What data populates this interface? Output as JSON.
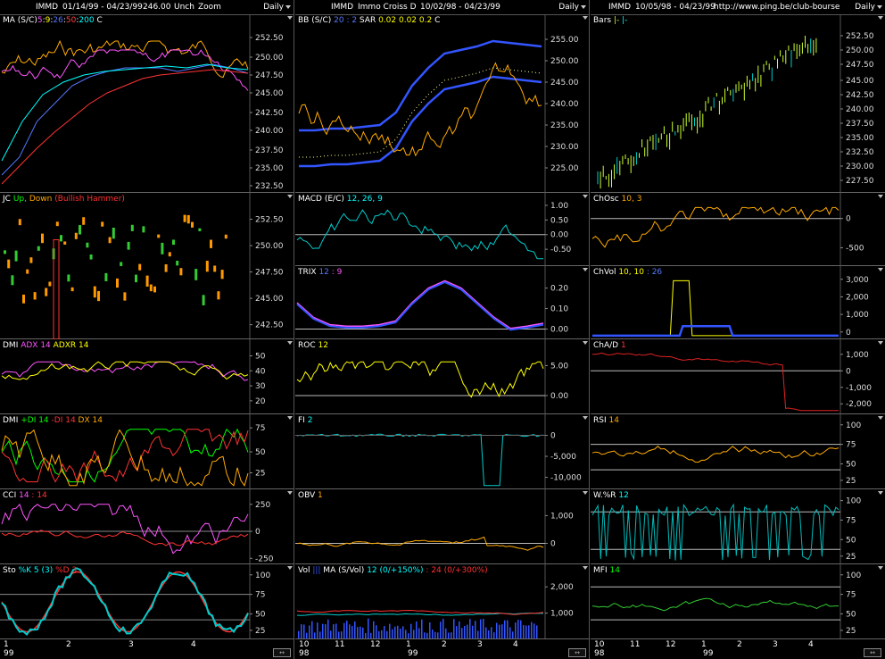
{
  "cols": [
    {
      "header": {
        "symbol": "IMMD",
        "range": "01/14/99 - 04/23/99",
        "price": "246.00",
        "chg": "Unch",
        "zoom": "Zoom",
        "period": "Daily"
      },
      "xticks": [
        "1",
        "2",
        "3",
        "4"
      ],
      "xyear": "99",
      "panels": [
        {
          "id": "ma",
          "label": [
            {
              "t": "MA (S/C)",
              "c": "#ffffff"
            },
            {
              "t": "5",
              "c": "#ff55ff"
            },
            {
              "t": ":",
              "c": "#fff"
            },
            {
              "t": "9",
              "c": "#ffff00"
            },
            {
              "t": ":",
              "c": "#fff"
            },
            {
              "t": "26",
              "c": "#5577ff"
            },
            {
              "t": ":",
              "c": "#fff"
            },
            {
              "t": "50",
              "c": "#ff4444"
            },
            {
              "t": ":",
              "c": "#fff"
            },
            {
              "t": "200",
              "c": "#00ffff"
            },
            {
              "t": "  C",
              "c": "#fff"
            }
          ],
          "yticks": [
            "252.50",
            "250.00",
            "247.50",
            "245.00",
            "242.50",
            "240.00",
            "237.50",
            "235.00",
            "232.50"
          ]
        },
        {
          "id": "jc",
          "label": [
            {
              "t": "JC",
              "c": "#fff"
            },
            {
              "t": " Up,",
              "c": "#00ff00"
            },
            {
              "t": " Down",
              "c": "#ffaa00"
            },
            {
              "t": " (Bullish Hammer)",
              "c": "#ff3333"
            }
          ],
          "yticks": [
            "252.50",
            "250.00",
            "247.50",
            "245.00",
            "242.50"
          ]
        },
        {
          "id": "dmi1",
          "label": [
            {
              "t": "DMI",
              "c": "#fff"
            },
            {
              "t": " ADX 14",
              "c": "#ff55ff"
            },
            {
              "t": " ADXR 14",
              "c": "#ffff00"
            }
          ],
          "yticks": [
            "50",
            "40",
            "30",
            "20"
          ]
        },
        {
          "id": "dmi2",
          "label": [
            {
              "t": "DMI",
              "c": "#fff"
            },
            {
              "t": " +DI 14",
              "c": "#00ff00"
            },
            {
              "t": " -DI 14",
              "c": "#ff3333"
            },
            {
              "t": " DX 14",
              "c": "#ffaa00"
            }
          ],
          "yticks": [
            "75",
            "50",
            "25"
          ]
        },
        {
          "id": "cci",
          "label": [
            {
              "t": "CCI",
              "c": "#fff"
            },
            {
              "t": " 14",
              "c": "#ff55ff"
            },
            {
              "t": " : 14",
              "c": "#ff3333"
            }
          ],
          "yticks": [
            "250",
            "0",
            "-250"
          ]
        },
        {
          "id": "sto",
          "label": [
            {
              "t": "Sto",
              "c": "#fff"
            },
            {
              "t": " %K 5 (3)",
              "c": "#00ffff"
            },
            {
              "t": " %D 3",
              "c": "#ff3333"
            }
          ],
          "yticks": [
            "100",
            "75",
            "50",
            "25"
          ]
        }
      ]
    },
    {
      "header": {
        "symbol": "IMMD",
        "name": "Immo Croiss D",
        "range": "10/02/98 - 04/23/99",
        "period": "Daily"
      },
      "xticks": [
        "10",
        "11",
        "12",
        "1",
        "2",
        "3",
        "4"
      ],
      "xyear": "98",
      "xyear2": "99",
      "panels": [
        {
          "id": "bb",
          "label": [
            {
              "t": "BB (S/C)",
              "c": "#fff"
            },
            {
              "t": " 20 : 2",
              "c": "#5577ff"
            },
            {
              "t": "  SAR",
              "c": "#fff"
            },
            {
              "t": " 0.02",
              "c": "#ffff00"
            },
            {
              "t": " 0.02",
              "c": "#ffff00"
            },
            {
              "t": " 0.2",
              "c": "#ffff00"
            },
            {
              "t": "  C",
              "c": "#fff"
            }
          ],
          "yticks": [
            "255.00",
            "250.00",
            "245.00",
            "240.00",
            "235.00",
            "230.00",
            "225.00"
          ]
        },
        {
          "id": "macd",
          "label": [
            {
              "t": "MACD (E/C)",
              "c": "#fff"
            },
            {
              "t": " 12, 26, 9",
              "c": "#00ffff"
            }
          ],
          "yticks": [
            "1.00",
            "0.50",
            "0.00",
            "-0.50"
          ]
        },
        {
          "id": "trix",
          "label": [
            {
              "t": "TRIX",
              "c": "#fff"
            },
            {
              "t": " 12",
              "c": "#5577ff"
            },
            {
              "t": " : 9",
              "c": "#ff55ff"
            }
          ],
          "yticks": [
            "0.20",
            "0.10",
            "0.00"
          ]
        },
        {
          "id": "roc",
          "label": [
            {
              "t": "ROC",
              "c": "#fff"
            },
            {
              "t": " 12",
              "c": "#ffff00"
            }
          ],
          "yticks": [
            "5.00",
            "0.00"
          ]
        },
        {
          "id": "fi",
          "label": [
            {
              "t": "FI",
              "c": "#fff"
            },
            {
              "t": " 2",
              "c": "#00ffff"
            }
          ],
          "yticks": [
            "0",
            "-5,000",
            "-10,000"
          ]
        },
        {
          "id": "oby",
          "label": [
            {
              "t": "OBV",
              "c": "#fff"
            },
            {
              "t": " 1",
              "c": "#ffaa00"
            }
          ],
          "yticks": [
            "1,000",
            "0"
          ]
        },
        {
          "id": "vol",
          "label": [
            {
              "t": "Vol",
              "c": "#fff"
            },
            {
              "t": " |||",
              "c": "#3355ff"
            },
            {
              "t": "  MA (S/Vol)",
              "c": "#fff"
            },
            {
              "t": " 12 (0/+150%)",
              "c": "#00ffff"
            },
            {
              "t": " : 24 (0/+300%)",
              "c": "#ff3333"
            }
          ],
          "yticks": [
            "2,000",
            "1,000"
          ]
        }
      ]
    },
    {
      "header": {
        "symbol": "IMMD",
        "range": "10/05/98 - 04/23/99",
        "url": "http://www.ping.be/club-bourse",
        "period": "Daily"
      },
      "xticks": [
        "10",
        "11",
        "12",
        "1",
        "2",
        "3",
        "4"
      ],
      "xyear": "98",
      "xyear2": "99",
      "panels": [
        {
          "id": "bars",
          "label": [
            {
              "t": "Bars",
              "c": "#fff"
            },
            {
              "t": " |-",
              "c": "#ccff33"
            },
            {
              "t": "  |-",
              "c": "#00ffff"
            }
          ],
          "yticks": [
            "252.50",
            "250.00",
            "247.50",
            "245.00",
            "242.50",
            "240.00",
            "237.50",
            "235.00",
            "232.50",
            "230.00",
            "227.50"
          ]
        },
        {
          "id": "chosc",
          "label": [
            {
              "t": "ChOsc",
              "c": "#fff"
            },
            {
              "t": " 10, 3",
              "c": "#ffaa00"
            }
          ],
          "yticks": [
            "0",
            "-500"
          ]
        },
        {
          "id": "chvol",
          "label": [
            {
              "t": "ChVol",
              "c": "#fff"
            },
            {
              "t": " 10, 10",
              "c": "#ffff00"
            },
            {
              "t": " : 26",
              "c": "#5577ff"
            }
          ],
          "yticks": [
            "3,000",
            "2,000",
            "1,000",
            "0"
          ]
        },
        {
          "id": "chad",
          "label": [
            {
              "t": "ChA/D",
              "c": "#fff"
            },
            {
              "t": " 1",
              "c": "#ff3333"
            }
          ],
          "yticks": [
            "1,000",
            "0",
            "-1,000",
            "-2,000"
          ]
        },
        {
          "id": "rsi",
          "label": [
            {
              "t": "RSI",
              "c": "#fff"
            },
            {
              "t": " 14",
              "c": "#ffaa00"
            }
          ],
          "yticks": [
            "100",
            "75",
            "50",
            "25"
          ]
        },
        {
          "id": "wr",
          "label": [
            {
              "t": "W.%R",
              "c": "#fff"
            },
            {
              "t": " 12",
              "c": "#00ffff"
            }
          ],
          "yticks": [
            "100",
            "75",
            "50",
            "25"
          ]
        },
        {
          "id": "mfi",
          "label": [
            {
              "t": "MFI",
              "c": "#fff"
            },
            {
              "t": " 14",
              "c": "#00ff00"
            }
          ],
          "yticks": [
            "100",
            "75",
            "50",
            "25"
          ]
        }
      ]
    }
  ]
}
